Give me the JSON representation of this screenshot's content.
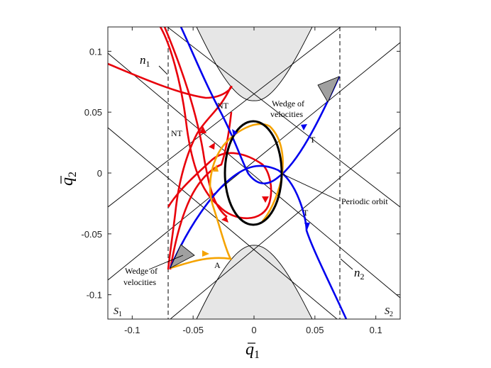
{
  "axes": {
    "xlabel_base": "q",
    "xlabel_sub": "1",
    "ylabel_base": "q",
    "ylabel_sub": "2",
    "xlim": [
      -0.12,
      0.12
    ],
    "ylim": [
      -0.12,
      0.12
    ],
    "x_ticks": [
      {
        "v": -0.1,
        "label": "-0.1"
      },
      {
        "v": -0.05,
        "label": "-0.05"
      },
      {
        "v": 0,
        "label": "0"
      },
      {
        "v": 0.05,
        "label": "0.05"
      },
      {
        "v": 0.1,
        "label": "0.1"
      }
    ],
    "y_ticks": [
      {
        "v": 0.1,
        "label": "0.1"
      },
      {
        "v": 0.05,
        "label": "0.05"
      },
      {
        "v": 0,
        "label": "0"
      },
      {
        "v": -0.05,
        "label": "-0.05"
      },
      {
        "v": -0.1,
        "label": "-0.1"
      }
    ]
  },
  "labels": {
    "n1_base": "n",
    "n1_sub": "1",
    "n2_base": "n",
    "n2_sub": "2",
    "s1_base": "S",
    "s1_sub": "1",
    "s2_base": "S",
    "s2_sub": "2",
    "nt_upper": "NT",
    "nt_left": "NT",
    "t_upper": "T",
    "t_lower": "T",
    "a_label": "A",
    "periodic_orbit": "Periodic orbit",
    "wedge_top_line1": "Wedge of",
    "wedge_top_line2": "velocities",
    "wedge_bottom_line1": "Wedge of",
    "wedge_bottom_line2": "velocities"
  },
  "colors": {
    "red": "#e8000b",
    "blue": "#0000ee",
    "orange": "#f5a300",
    "black": "#000000",
    "region_fill": "#e6e6e6",
    "wedge_fill": "#a0a0a0"
  }
}
